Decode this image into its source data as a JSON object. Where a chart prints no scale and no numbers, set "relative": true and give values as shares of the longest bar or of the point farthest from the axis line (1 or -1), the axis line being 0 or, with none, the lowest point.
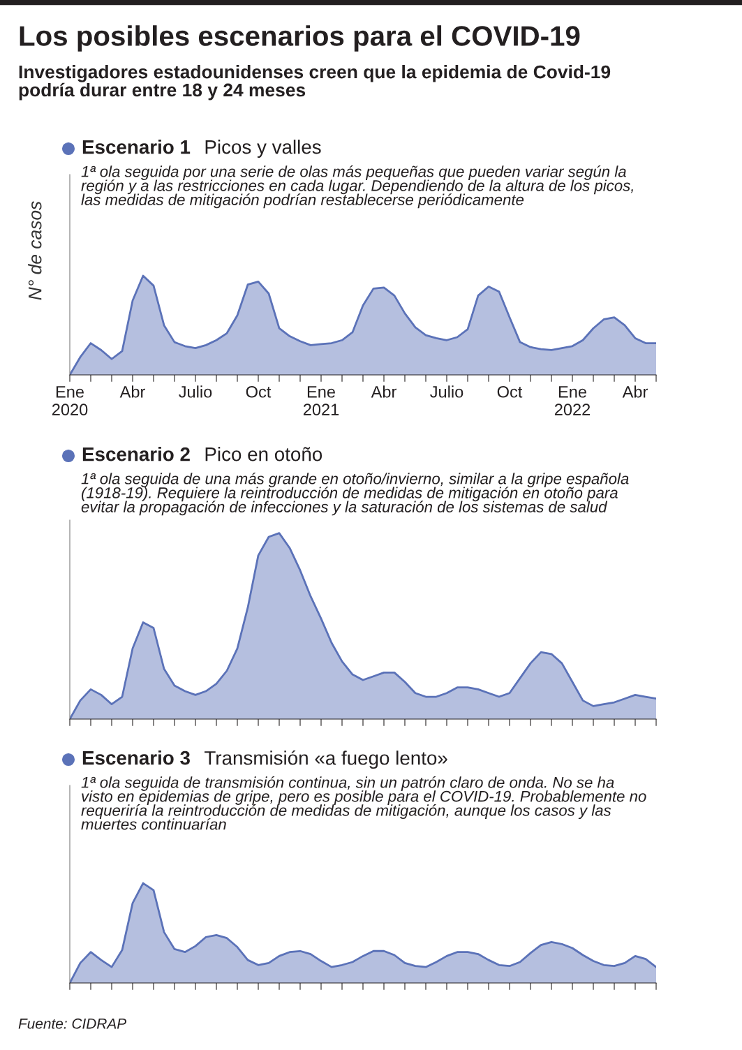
{
  "chart_data": [
    {
      "type": "other",
      "title": "Los posibles escenarios para el COVID-19",
      "subtitle": "Investigadores estadounidenses creen que la epidemia de Covid-19\npodría durar entre 18 y 24 meses",
      "annotations": [
        "Fuente: CIDRAP"
      ]
    },
    {
      "type": "area",
      "relative": true,
      "title": "Escenario 1",
      "subtitle": "Picos y valles",
      "ylabel": "N° de casos",
      "annotations": [
        "1ª ola seguida por una serie de olas más pequeñas que pueden variar según la\nregión y a las restricciones en cada lugar. Dependiendo de la altura de los picos,\nlas medidas de mitigación podrían restablecerse periódicamente"
      ],
      "categories": [
        "Ene\n2020",
        null,
        null,
        null,
        null,
        null,
        "Abr",
        null,
        null,
        null,
        null,
        null,
        "Julio",
        null,
        null,
        null,
        null,
        null,
        "Oct",
        null,
        null,
        null,
        null,
        null,
        "Ene\n2021",
        null,
        null,
        null,
        null,
        null,
        "Abr",
        null,
        null,
        null,
        null,
        null,
        "Julio",
        null,
        null,
        null,
        null,
        null,
        "Oct",
        null,
        null,
        null,
        null,
        null,
        "Ene\n2022",
        null,
        null,
        null,
        null,
        null,
        "Abr",
        null,
        null
      ],
      "series": [
        {
          "color": "#5b72b8",
          "values": [
            0,
            0.18,
            0.32,
            0.25,
            0.16,
            0.24,
            0.75,
            1.0,
            0.9,
            0.5,
            0.33,
            0.29,
            0.27,
            0.3,
            0.35,
            0.42,
            0.6,
            0.91,
            0.94,
            0.82,
            0.47,
            0.39,
            0.34,
            0.3,
            0.31,
            0.32,
            0.35,
            0.43,
            0.7,
            0.87,
            0.88,
            0.8,
            0.62,
            0.48,
            0.4,
            0.37,
            0.35,
            0.38,
            0.46,
            0.8,
            0.89,
            0.84,
            0.58,
            0.33,
            0.28,
            0.26,
            0.25,
            0.27,
            0.29,
            0.35,
            0.47,
            0.56,
            0.58,
            0.5,
            0.37,
            0.32,
            0.32
          ]
        }
      ]
    },
    {
      "type": "area",
      "relative": true,
      "title": "Escenario 2",
      "subtitle": "Pico en otoño",
      "annotations": [
        "1ª ola seguida de una más grande en otoño/invierno, similar a la gripe española\n(1918-19). Requiere la reintroducción de medidas de mitigación en otoño para\nevitar la propagación de infecciones y la saturación de los sistemas de salud"
      ],
      "categories": [
        null,
        null,
        null,
        null,
        null,
        null,
        null,
        null,
        null,
        null,
        null,
        null,
        null,
        null,
        null,
        null,
        null,
        null,
        null,
        null,
        null,
        null,
        null,
        null,
        null,
        null,
        null,
        null,
        null,
        null,
        null,
        null,
        null,
        null,
        null,
        null,
        null,
        null,
        null,
        null,
        null,
        null,
        null,
        null,
        null,
        null,
        null,
        null,
        null,
        null,
        null,
        null,
        null,
        null,
        null,
        null,
        null
      ],
      "series": [
        {
          "color": "#5b72b8",
          "values": [
            0,
            0.1,
            0.16,
            0.13,
            0.08,
            0.12,
            0.38,
            0.52,
            0.49,
            0.27,
            0.18,
            0.15,
            0.13,
            0.15,
            0.19,
            0.26,
            0.38,
            0.6,
            0.88,
            0.98,
            1.0,
            0.92,
            0.8,
            0.66,
            0.54,
            0.41,
            0.31,
            0.24,
            0.21,
            0.23,
            0.25,
            0.25,
            0.2,
            0.14,
            0.12,
            0.12,
            0.14,
            0.17,
            0.17,
            0.16,
            0.14,
            0.12,
            0.14,
            0.22,
            0.3,
            0.36,
            0.35,
            0.3,
            0.2,
            0.1,
            0.07,
            0.08,
            0.09,
            0.11,
            0.13,
            0.12,
            0.11
          ]
        }
      ]
    },
    {
      "type": "area",
      "relative": true,
      "title": "Escenario 3",
      "subtitle": "Transmisión «a fuego lento»",
      "annotations": [
        "1ª ola seguida de transmisión continua, sin un patrón claro de onda. No se ha\nvisto en epidemias de gripe, pero es posible para el COVID-19. Probablemente no\nrequeriría la reintroducción de medidas de mitigación, aunque los casos y las\nmuertes continuarían"
      ],
      "categories": [
        null,
        null,
        null,
        null,
        null,
        null,
        null,
        null,
        null,
        null,
        null,
        null,
        null,
        null,
        null,
        null,
        null,
        null,
        null,
        null,
        null,
        null,
        null,
        null,
        null,
        null,
        null,
        null,
        null,
        null,
        null,
        null,
        null,
        null,
        null,
        null,
        null,
        null,
        null,
        null,
        null,
        null,
        null,
        null,
        null,
        null,
        null,
        null,
        null,
        null,
        null,
        null,
        null,
        null,
        null,
        null,
        null
      ],
      "series": [
        {
          "color": "#5b72b8",
          "values": [
            0,
            0.2,
            0.31,
            0.23,
            0.16,
            0.33,
            0.8,
            1.0,
            0.93,
            0.51,
            0.34,
            0.31,
            0.37,
            0.46,
            0.48,
            0.45,
            0.36,
            0.23,
            0.18,
            0.2,
            0.27,
            0.31,
            0.32,
            0.29,
            0.22,
            0.16,
            0.18,
            0.21,
            0.27,
            0.32,
            0.32,
            0.28,
            0.2,
            0.17,
            0.16,
            0.21,
            0.27,
            0.31,
            0.31,
            0.29,
            0.23,
            0.18,
            0.17,
            0.21,
            0.3,
            0.38,
            0.41,
            0.39,
            0.35,
            0.28,
            0.22,
            0.18,
            0.17,
            0.2,
            0.27,
            0.24,
            0.16
          ]
        }
      ]
    }
  ]
}
